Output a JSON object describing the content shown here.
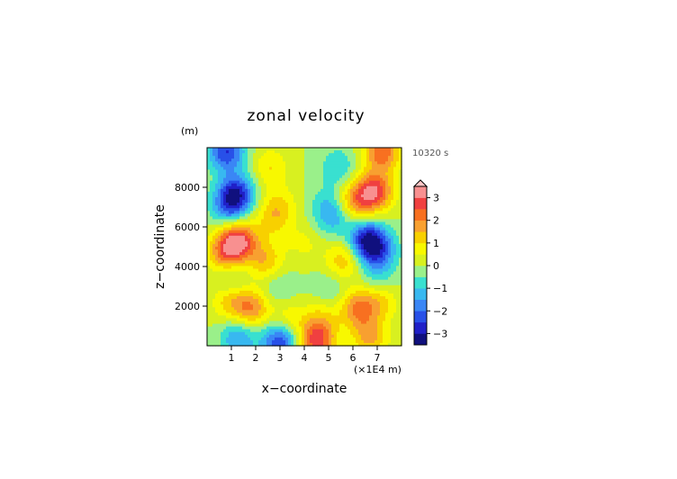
{
  "chart_data": {
    "type": "heatmap",
    "title": "zonal velocity",
    "time_label": "10320 s",
    "xlabel": "x−coordinate",
    "x_unit": "(×1E4 m)",
    "ylabel": "z−coordinate",
    "y_unit": "(m)",
    "xlim": [
      0,
      8
    ],
    "ylim": [
      0,
      10000
    ],
    "x_ticks": [
      1,
      2,
      3,
      4,
      5,
      6,
      7
    ],
    "y_ticks": [
      2000,
      4000,
      6000,
      8000
    ],
    "colorbar": {
      "min": -3.5,
      "max": 3.5,
      "ticks": [
        3,
        2,
        1,
        0,
        -1,
        -2,
        -3
      ],
      "tick_labels": [
        "3",
        "2",
        "1",
        "0",
        "−1",
        "−2",
        "−3"
      ],
      "extend": "max"
    },
    "features": [
      {
        "x": 1.3,
        "z": 5300,
        "value": 3.0
      },
      {
        "x": 0.7,
        "z": 4700,
        "value": 1.8
      },
      {
        "x": 6.6,
        "z": 5300,
        "value": -3.0
      },
      {
        "x": 7.1,
        "z": 4700,
        "value": -1.6
      },
      {
        "x": 1.2,
        "z": 7700,
        "value": -2.5
      },
      {
        "x": 0.9,
        "z": 7000,
        "value": -1.6
      },
      {
        "x": 6.9,
        "z": 7800,
        "value": 2.8
      },
      {
        "x": 6.1,
        "z": 7300,
        "value": 1.8
      },
      {
        "x": 0.8,
        "z": 9800,
        "value": -2.5
      },
      {
        "x": 7.2,
        "z": 9800,
        "value": 2.4
      },
      {
        "x": 2.6,
        "z": 9000,
        "value": 1.0
      },
      {
        "x": 5.4,
        "z": 9000,
        "value": -1.0
      },
      {
        "x": 2.4,
        "z": 4300,
        "value": 1.4
      },
      {
        "x": 5.6,
        "z": 4300,
        "value": 1.4
      },
      {
        "x": 2.7,
        "z": 6400,
        "value": 1.0
      },
      {
        "x": 5.2,
        "z": 6400,
        "value": -1.0
      },
      {
        "x": 1.8,
        "z": 1900,
        "value": 2.0
      },
      {
        "x": 6.2,
        "z": 1900,
        "value": 2.0
      },
      {
        "x": 0.9,
        "z": 2300,
        "value": 1.3
      },
      {
        "x": 7.1,
        "z": 2300,
        "value": 1.3
      },
      {
        "x": 1.0,
        "z": 3200,
        "value": -0.8
      },
      {
        "x": 7.0,
        "z": 3200,
        "value": -0.8
      },
      {
        "x": 1.3,
        "z": 400,
        "value": -1.6
      },
      {
        "x": 6.7,
        "z": 400,
        "value": 1.6
      },
      {
        "x": 3.0,
        "z": 200,
        "value": -2.6
      },
      {
        "x": 4.5,
        "z": 200,
        "value": 2.6
      },
      {
        "x": 3.3,
        "z": 1300,
        "value": 1.0
      },
      {
        "x": 4.7,
        "z": 1300,
        "value": 1.0
      },
      {
        "x": 2.9,
        "z": 2900,
        "value": -0.6
      },
      {
        "x": 5.1,
        "z": 2900,
        "value": -0.6
      },
      {
        "x": 3.0,
        "z": 7100,
        "value": 0.8
      },
      {
        "x": 5.0,
        "z": 7100,
        "value": -0.8
      },
      {
        "x": 4.0,
        "z": 5200,
        "value": 0.6
      }
    ]
  }
}
